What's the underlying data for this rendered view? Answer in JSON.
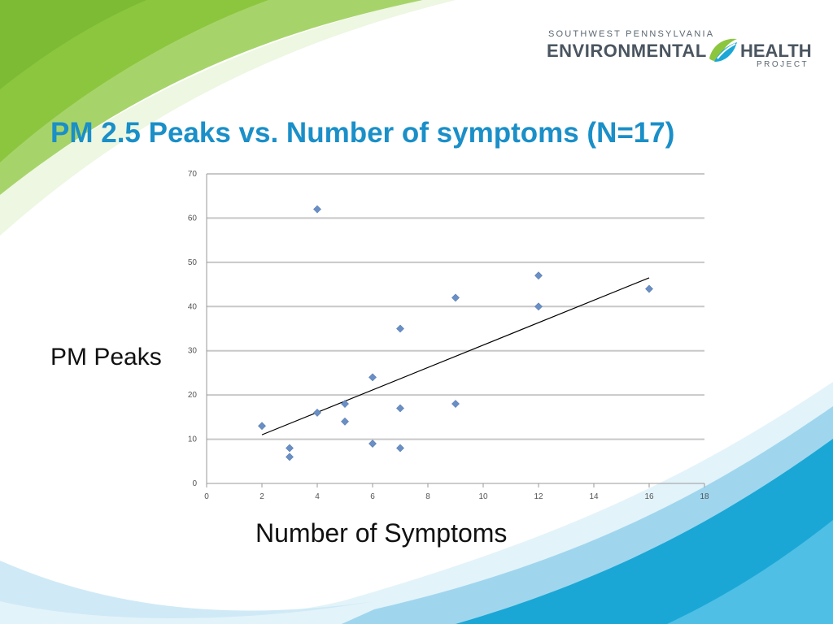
{
  "slide": {
    "title": "PM 2.5 Peaks vs. Number of symptoms (N=17)"
  },
  "logo": {
    "line1": "SOUTHWEST PENNSYLVANIA",
    "line2a": "ENVIRONMENTAL",
    "line2b": "HEALTH",
    "line3": "PROJECT",
    "mark_icon": "swirl-leaf-icon"
  },
  "colors": {
    "title": "#1a8fc8",
    "point": "#6a8fc4",
    "trendline": "#000000",
    "gridline": "#c8c8c8",
    "green_accent": "#8cc63f",
    "blue_accent": "#1aa7d6"
  },
  "chart_data": {
    "type": "scatter",
    "title": "",
    "xlabel": "Number of Symptoms",
    "ylabel": "PM Peaks",
    "xlim": [
      0,
      18
    ],
    "ylim": [
      0,
      70
    ],
    "xticks": [
      0,
      2,
      4,
      6,
      8,
      10,
      12,
      14,
      16,
      18
    ],
    "yticks": [
      0,
      10,
      20,
      30,
      40,
      50,
      60,
      70
    ],
    "grid": "horizontal",
    "points": [
      {
        "x": 2,
        "y": 13
      },
      {
        "x": 3,
        "y": 8
      },
      {
        "x": 3,
        "y": 6
      },
      {
        "x": 4,
        "y": 62
      },
      {
        "x": 4,
        "y": 16
      },
      {
        "x": 5,
        "y": 18
      },
      {
        "x": 5,
        "y": 14
      },
      {
        "x": 6,
        "y": 24
      },
      {
        "x": 6,
        "y": 9
      },
      {
        "x": 7,
        "y": 35
      },
      {
        "x": 7,
        "y": 17
      },
      {
        "x": 7,
        "y": 8
      },
      {
        "x": 9,
        "y": 42
      },
      {
        "x": 9,
        "y": 18
      },
      {
        "x": 12,
        "y": 47
      },
      {
        "x": 12,
        "y": 40
      },
      {
        "x": 16,
        "y": 44
      }
    ],
    "trendline": {
      "type": "linear",
      "x": [
        2,
        16
      ],
      "y": [
        11,
        46.5
      ]
    }
  }
}
